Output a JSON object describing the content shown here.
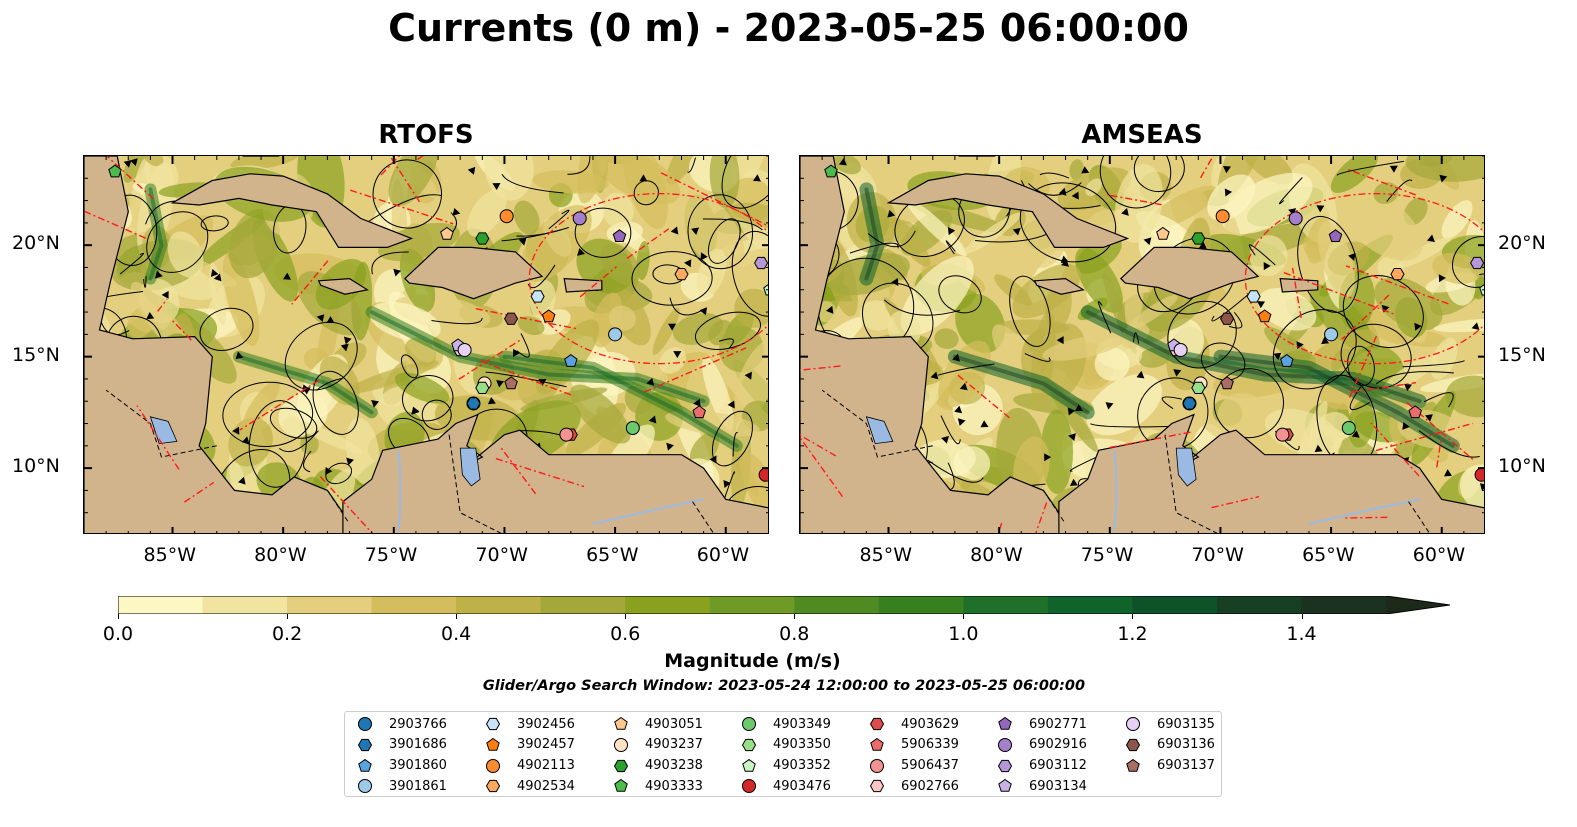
{
  "figure_title": "Currents (0 m) - 2023-05-25 06:00:00",
  "panels": [
    {
      "title": "RTOFS"
    },
    {
      "title": "AMSEAS"
    }
  ],
  "lon_ticks": [
    "85°W",
    "80°W",
    "75°W",
    "70°W",
    "65°W",
    "60°W"
  ],
  "lat_ticks": [
    "20°N",
    "15°N",
    "10°N"
  ],
  "colorbar": {
    "title": "Magnitude (m/s)",
    "tick_labels": [
      "0.0",
      "0.2",
      "0.4",
      "0.6",
      "0.8",
      "1.0",
      "1.2",
      "1.4"
    ],
    "colors": [
      "#fdf7c3",
      "#f1e4a0",
      "#e3cf7d",
      "#d4bd5c",
      "#bdb147",
      "#a4a83a",
      "#8aa11f",
      "#6e9a25",
      "#4f8b22",
      "#37801f",
      "#1f7028",
      "#0f632b",
      "#0d5229",
      "#163f24",
      "#1b3220",
      "#1d2a1a"
    ]
  },
  "subtitle": "Glider/Argo Search Window: 2023-05-24 12:00:00 to 2023-05-25 06:00:00",
  "legend": [
    {
      "label": "2903766",
      "color": "#1f77b4",
      "marker": "circle"
    },
    {
      "label": "3901686",
      "color": "#1f77b4",
      "marker": "hexagon"
    },
    {
      "label": "3901860",
      "color": "#5ba3e0",
      "marker": "pentagon"
    },
    {
      "label": "3901861",
      "color": "#9ecae9",
      "marker": "circle"
    },
    {
      "label": "3902456",
      "color": "#c6e3f7",
      "marker": "hexagon"
    },
    {
      "label": "3902457",
      "color": "#ff7f0e",
      "marker": "pentagon"
    },
    {
      "label": "4902113",
      "color": "#ff8c2e",
      "marker": "circle"
    },
    {
      "label": "4902534",
      "color": "#ffa95e",
      "marker": "hexagon"
    },
    {
      "label": "4903051",
      "color": "#ffc98e",
      "marker": "pentagon"
    },
    {
      "label": "4903237",
      "color": "#ffe3c4",
      "marker": "circle"
    },
    {
      "label": "4903238",
      "color": "#2ca02c",
      "marker": "hexagon"
    },
    {
      "label": "4903333",
      "color": "#4cbb4c",
      "marker": "pentagon"
    },
    {
      "label": "4903349",
      "color": "#6cc96c",
      "marker": "circle"
    },
    {
      "label": "4903350",
      "color": "#98df8a",
      "marker": "hexagon"
    },
    {
      "label": "4903352",
      "color": "#c8f5c0",
      "marker": "pentagon"
    },
    {
      "label": "4903476",
      "color": "#d62728",
      "marker": "circle"
    },
    {
      "label": "4903629",
      "color": "#e04b4c",
      "marker": "hexagon"
    },
    {
      "label": "5906339",
      "color": "#ea6d6e",
      "marker": "pentagon"
    },
    {
      "label": "5906437",
      "color": "#f29293",
      "marker": "circle"
    },
    {
      "label": "6902766",
      "color": "#fbc6c4",
      "marker": "hexagon"
    },
    {
      "label": "6902771",
      "color": "#9467bd",
      "marker": "pentagon"
    },
    {
      "label": "6902916",
      "color": "#a37fcc",
      "marker": "circle"
    },
    {
      "label": "6903112",
      "color": "#b597d9",
      "marker": "hexagon"
    },
    {
      "label": "6903134",
      "color": "#c9b2e6",
      "marker": "pentagon"
    },
    {
      "label": "6903135",
      "color": "#e6d0f5",
      "marker": "circle"
    },
    {
      "label": "6903136",
      "color": "#8c564b",
      "marker": "hexagon"
    },
    {
      "label": "6903137",
      "color": "#a86e62",
      "marker": "pentagon"
    }
  ]
}
